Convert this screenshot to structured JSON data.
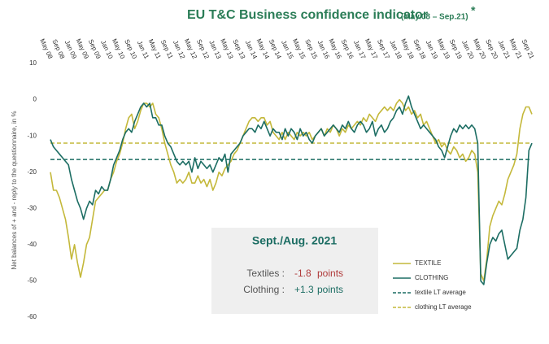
{
  "chart_data": {
    "type": "line",
    "title": "EU T&C Business confidence indicator",
    "subtitle": "(May.08 – Sep.21)",
    "title_mark": "*",
    "y_label": "Net balances of + and - reply to the questionnaire, in %",
    "categories": [
      "May 08",
      null,
      null,
      null,
      "Sep 08",
      null,
      null,
      null,
      "Jan 09",
      null,
      null,
      null,
      "May 09",
      null,
      null,
      null,
      "Sep 09",
      null,
      null,
      null,
      "Jan 10",
      null,
      null,
      null,
      "May 10",
      null,
      null,
      null,
      "Sep 10",
      null,
      null,
      null,
      "Jan 11",
      null,
      null,
      null,
      "May 11",
      null,
      null,
      null,
      "Sep 11",
      null,
      null,
      null,
      "Jan 12",
      null,
      null,
      null,
      "May 12",
      null,
      null,
      null,
      "Sep 12",
      null,
      null,
      null,
      "Jan 13",
      null,
      null,
      null,
      "May 13",
      null,
      null,
      null,
      "Sep 13",
      null,
      null,
      null,
      "Jan 14",
      null,
      null,
      null,
      "May 14",
      null,
      null,
      null,
      "Sep 14",
      null,
      null,
      null,
      "Jan 15",
      null,
      null,
      null,
      "May 15",
      null,
      null,
      null,
      "Sep 15",
      null,
      null,
      null,
      "Jan 16",
      null,
      null,
      null,
      "May 16",
      null,
      null,
      null,
      "Sep 16",
      null,
      null,
      null,
      "Jan 17",
      null,
      null,
      null,
      "May 17",
      null,
      null,
      null,
      "Sep 17",
      null,
      null,
      null,
      "Jan 18",
      null,
      null,
      null,
      "May 18",
      null,
      null,
      null,
      "Sep 18",
      null,
      null,
      null,
      "Jan 19",
      null,
      null,
      null,
      "May 19",
      null,
      null,
      null,
      "Sep 19",
      null,
      null,
      null,
      "Jan 20",
      null,
      null,
      null,
      "May 20",
      null,
      null,
      null,
      "Sep 20",
      null,
      null,
      null,
      "Jan 21",
      null,
      null,
      null,
      "May 21",
      null,
      null,
      null,
      "Sep 21"
    ],
    "series": [
      {
        "name": "TEXTILE",
        "color": "#c4b83a",
        "values": [
          -20,
          -25,
          -25,
          -27,
          -30,
          -33,
          -38,
          -44,
          -40,
          -45,
          -49,
          -45,
          -40,
          -38,
          -33,
          -28,
          -27,
          -26,
          -25,
          -25,
          -22,
          -20,
          -17,
          -15,
          -12,
          -8,
          -5,
          -4,
          -8,
          -6,
          -3,
          -1,
          -1,
          -2,
          -1,
          -4,
          -5,
          -8,
          -12,
          -15,
          -18,
          -20,
          -23,
          -22,
          -23,
          -22,
          -20,
          -23,
          -23,
          -21,
          -23,
          -22,
          -24,
          -22,
          -25,
          -23,
          -20,
          -21,
          -19,
          -18,
          -17,
          -15,
          -14,
          -12,
          -10,
          -8,
          -6,
          -5,
          -5,
          -6,
          -5,
          -5,
          -7,
          -6,
          -9,
          -10,
          -11,
          -9,
          -11,
          -9,
          -10,
          -11,
          -9,
          -10,
          -9,
          -10,
          -9,
          -11,
          -10,
          -9,
          -8,
          -10,
          -8,
          -9,
          -7,
          -8,
          -10,
          -8,
          -9,
          -7,
          -8,
          -7,
          -6,
          -7,
          -5,
          -6,
          -4,
          -5,
          -6,
          -4,
          -3,
          -2,
          -3,
          -2,
          -3,
          -1,
          0,
          -1,
          -3,
          -2,
          -4,
          -3,
          -5,
          -4,
          -7,
          -6,
          -8,
          -10,
          -12,
          -11,
          -13,
          -12,
          -14,
          -15,
          -13,
          -14,
          -16,
          -15,
          -17,
          -16,
          -14,
          -15,
          -20,
          -48,
          -50,
          -44,
          -35,
          -32,
          -30,
          -28,
          -29,
          -26,
          -22,
          -20,
          -18,
          -15,
          -8,
          -4,
          -2,
          -2,
          -4
        ]
      },
      {
        "name": "CLOTHING",
        "color": "#1c6d63",
        "values": [
          -11,
          -13,
          -14,
          -15,
          -16,
          -17,
          -18,
          -22,
          -25,
          -28,
          -30,
          -33,
          -30,
          -28,
          -29,
          -25,
          -26,
          -24,
          -25,
          -25,
          -22,
          -18,
          -16,
          -14,
          -11,
          -9,
          -8,
          -9,
          -6,
          -4,
          -2,
          -1,
          -2,
          -1,
          -5,
          -5,
          -7,
          -7,
          -10,
          -12,
          -13,
          -15,
          -17,
          -18,
          -17,
          -18,
          -17,
          -20,
          -16,
          -19,
          -17,
          -18,
          -19,
          -18,
          -20,
          -18,
          -16,
          -17,
          -15,
          -20,
          -15,
          -14,
          -13,
          -12,
          -10,
          -9,
          -8,
          -8,
          -9,
          -7,
          -8,
          -6,
          -8,
          -10,
          -8,
          -9,
          -9,
          -11,
          -8,
          -10,
          -8,
          -9,
          -11,
          -8,
          -10,
          -9,
          -11,
          -12,
          -10,
          -9,
          -8,
          -10,
          -9,
          -8,
          -7,
          -8,
          -9,
          -7,
          -8,
          -6,
          -8,
          -9,
          -7,
          -6,
          -7,
          -9,
          -8,
          -6,
          -10,
          -8,
          -7,
          -9,
          -8,
          -6,
          -5,
          -3,
          -2,
          -4,
          -1,
          1,
          -2,
          -4,
          -6,
          -8,
          -7,
          -8,
          -9,
          -10,
          -11,
          -13,
          -14,
          -16,
          -13,
          -10,
          -8,
          -9,
          -7,
          -8,
          -7,
          -8,
          -7,
          -8,
          -12,
          -50,
          -51,
          -45,
          -40,
          -38,
          -39,
          -37,
          -36,
          -40,
          -44,
          -43,
          -42,
          -41,
          -36,
          -33,
          -27,
          -14,
          -12
        ]
      }
    ],
    "reference_lines": [
      {
        "name": "textile LT average",
        "color": "#1c6d63",
        "value": -16.5
      },
      {
        "name": "clothing LT average",
        "color": "#c4b83a",
        "value": -12
      }
    ],
    "ylim": [
      -60,
      10
    ],
    "yticks": [
      10,
      0,
      -10,
      -20,
      -30,
      -40,
      -50,
      -60
    ],
    "grid": false,
    "legend": "right",
    "note_box": {
      "heading": "Sept./Aug. 2021",
      "rows": [
        {
          "label": "Textiles :",
          "value": "-1.8",
          "unit": "points",
          "color": "#b03a3a"
        },
        {
          "label": "Clothing :",
          "value": "+1.3",
          "unit": "points",
          "color": "#1c6d63"
        }
      ]
    }
  }
}
